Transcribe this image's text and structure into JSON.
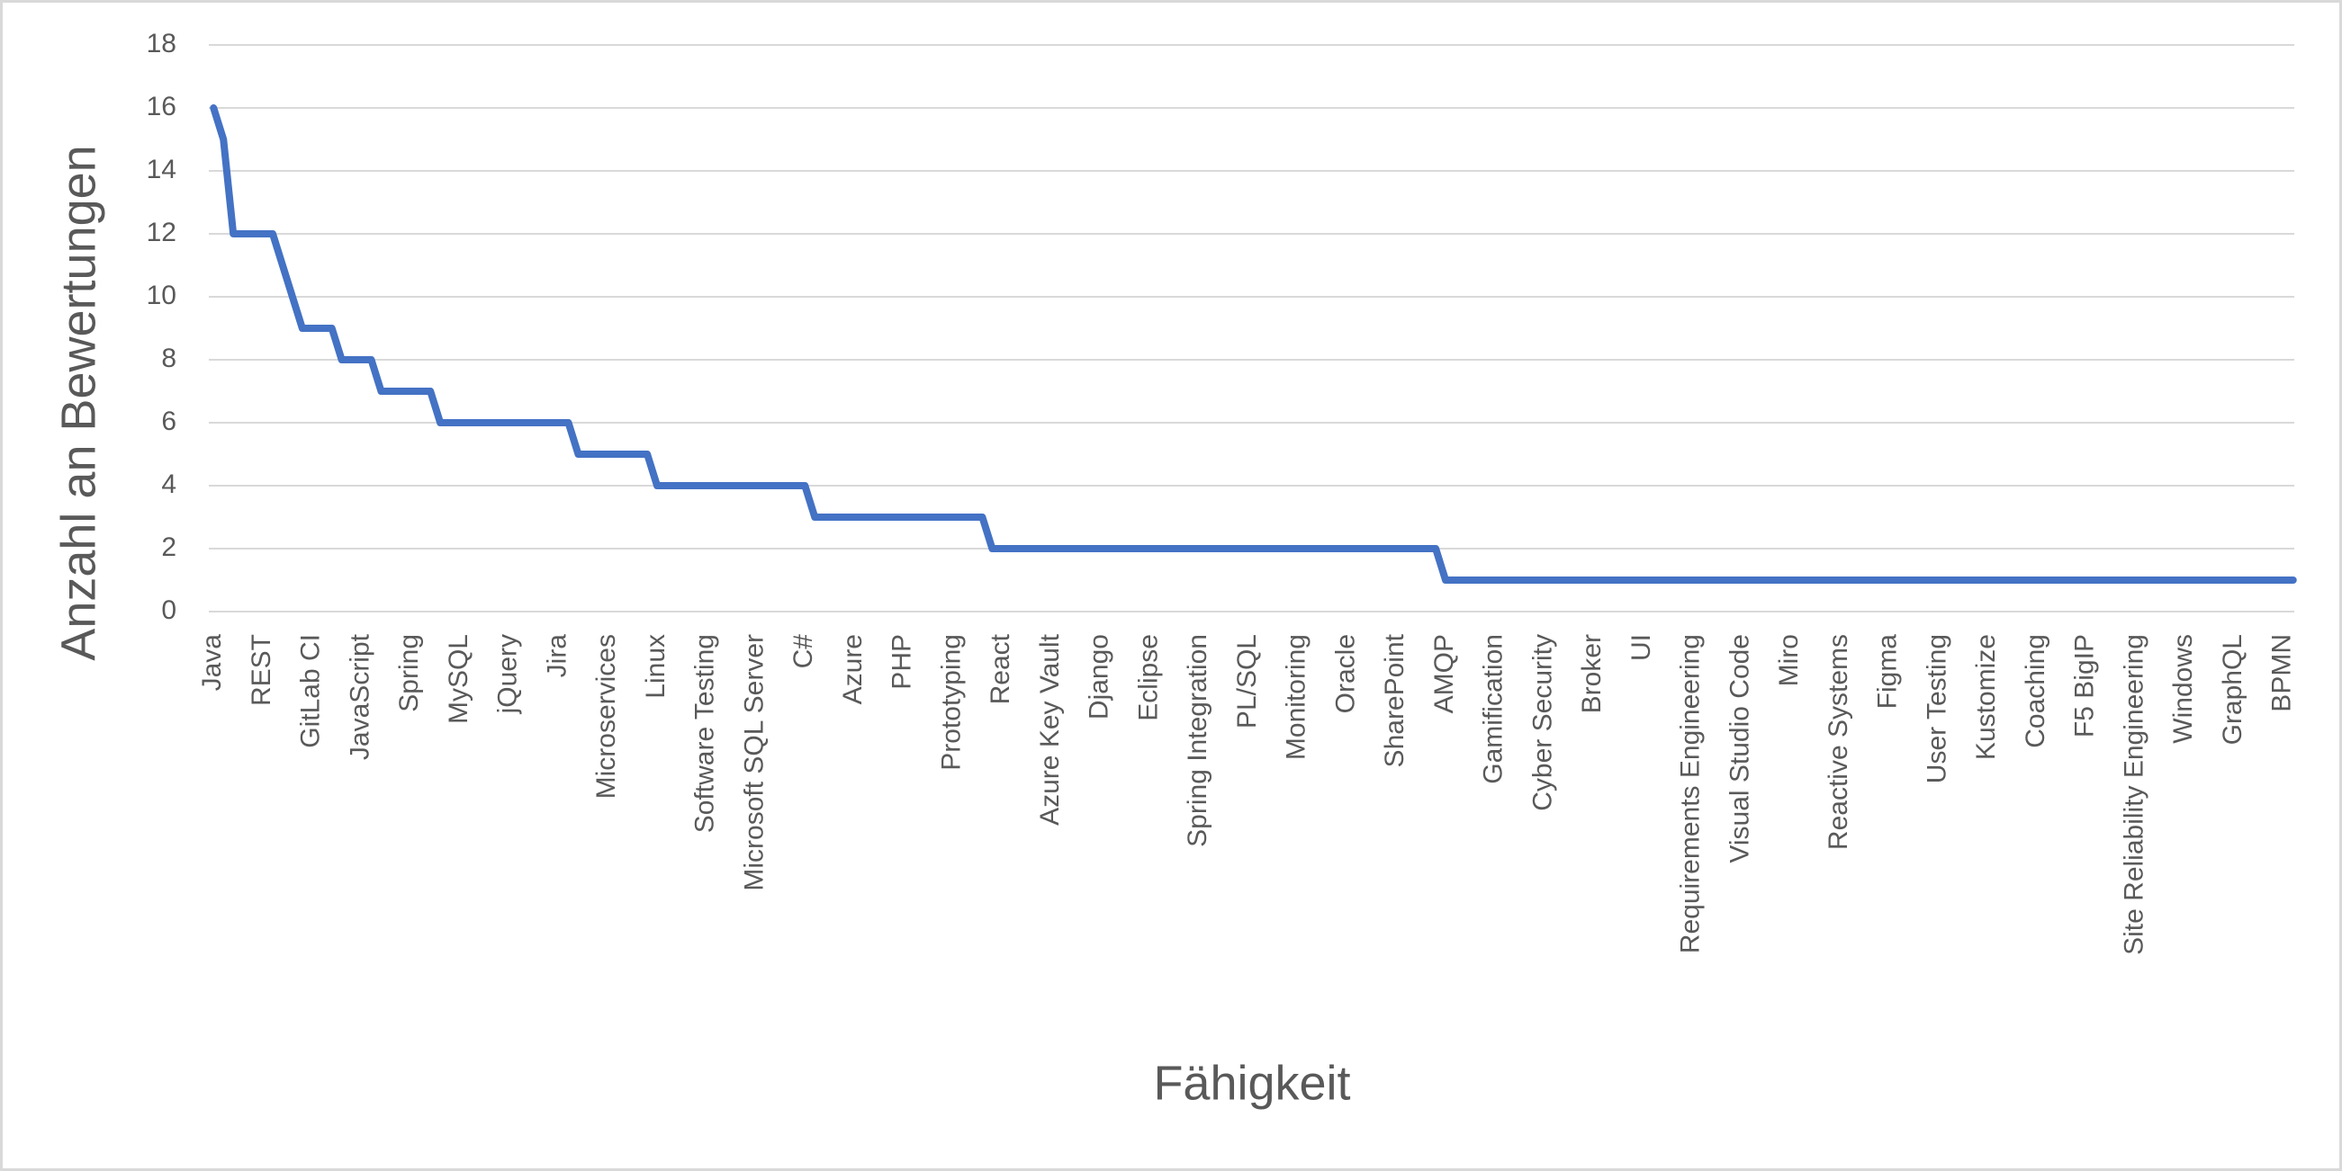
{
  "chart_data": {
    "type": "line",
    "x_label": "Fähigkeit",
    "y_label": "Anzahl an Bewertungen",
    "categories": [
      "Java",
      null,
      null,
      null,
      null,
      "REST",
      null,
      null,
      null,
      null,
      "GitLab CI",
      null,
      null,
      null,
      null,
      "JavaScript",
      null,
      null,
      null,
      null,
      "Spring",
      null,
      null,
      null,
      null,
      "MySQL",
      null,
      null,
      null,
      null,
      "jQuery",
      null,
      null,
      null,
      null,
      "Jira",
      null,
      null,
      null,
      null,
      "Microservices",
      null,
      null,
      null,
      null,
      "Linux",
      null,
      null,
      null,
      null,
      "Software Testing",
      null,
      null,
      null,
      null,
      "Microsoft SQL Server",
      null,
      null,
      null,
      null,
      "C#",
      null,
      null,
      null,
      null,
      "Azure",
      null,
      null,
      null,
      null,
      "PHP",
      null,
      null,
      null,
      null,
      "Prototyping",
      null,
      null,
      null,
      null,
      "React",
      null,
      null,
      null,
      null,
      "Azure Key Vault",
      null,
      null,
      null,
      null,
      "Django",
      null,
      null,
      null,
      null,
      "Eclipse",
      null,
      null,
      null,
      null,
      "Spring Integration",
      null,
      null,
      null,
      null,
      "PL/SQL",
      null,
      null,
      null,
      null,
      "Monitoring",
      null,
      null,
      null,
      null,
      "Oracle",
      null,
      null,
      null,
      null,
      "SharePoint",
      null,
      null,
      null,
      null,
      "AMQP",
      null,
      null,
      null,
      null,
      "Gamification",
      null,
      null,
      null,
      null,
      "Cyber Security",
      null,
      null,
      null,
      null,
      "Broker",
      null,
      null,
      null,
      null,
      "UI",
      null,
      null,
      null,
      null,
      "Requirements Engineering",
      null,
      null,
      null,
      null,
      "Visual Studio Code",
      null,
      null,
      null,
      null,
      "Miro",
      null,
      null,
      null,
      null,
      "Reactive Systems",
      null,
      null,
      null,
      null,
      "Figma",
      null,
      null,
      null,
      null,
      "User Testing",
      null,
      null,
      null,
      null,
      "Kustomize",
      null,
      null,
      null,
      null,
      "Coaching",
      null,
      null,
      null,
      null,
      "F5 BigIP",
      null,
      null,
      null,
      null,
      "Site Reliability Engineering",
      null,
      null,
      null,
      null,
      "Windows",
      null,
      null,
      null,
      null,
      "GraphQL",
      null,
      null,
      null,
      null,
      "BPMN",
      null
    ],
    "series": [
      {
        "color": "#4472c4",
        "values": [
          16,
          15,
          12,
          12,
          12,
          12,
          12,
          11,
          10,
          9,
          9,
          9,
          9,
          8,
          8,
          8,
          8,
          7,
          7,
          7,
          7,
          7,
          7,
          6,
          6,
          6,
          6,
          6,
          6,
          6,
          6,
          6,
          6,
          6,
          6,
          6,
          6,
          5,
          5,
          5,
          5,
          5,
          5,
          5,
          5,
          4,
          4,
          4,
          4,
          4,
          4,
          4,
          4,
          4,
          4,
          4,
          4,
          4,
          4,
          4,
          4,
          3,
          3,
          3,
          3,
          3,
          3,
          3,
          3,
          3,
          3,
          3,
          3,
          3,
          3,
          3,
          3,
          3,
          3,
          2,
          2,
          2,
          2,
          2,
          2,
          2,
          2,
          2,
          2,
          2,
          2,
          2,
          2,
          2,
          2,
          2,
          2,
          2,
          2,
          2,
          2,
          2,
          2,
          2,
          2,
          2,
          2,
          2,
          2,
          2,
          2,
          2,
          2,
          2,
          2,
          2,
          2,
          2,
          2,
          2,
          2,
          2,
          2,
          2,
          2,
          1,
          1,
          1,
          1,
          1,
          1,
          1,
          1,
          1,
          1,
          1,
          1,
          1,
          1,
          1,
          1,
          1,
          1,
          1,
          1,
          1,
          1,
          1,
          1,
          1,
          1,
          1,
          1,
          1,
          1,
          1,
          1,
          1,
          1,
          1,
          1,
          1,
          1,
          1,
          1,
          1,
          1,
          1,
          1,
          1,
          1,
          1,
          1,
          1,
          1,
          1,
          1,
          1,
          1,
          1,
          1,
          1,
          1,
          1,
          1,
          1,
          1,
          1,
          1,
          1,
          1,
          1,
          1,
          1,
          1,
          1,
          1,
          1,
          1,
          1,
          1,
          1,
          1,
          1,
          1,
          1,
          1,
          1,
          1,
          1,
          1,
          1
        ]
      }
    ],
    "ylim": [
      0,
      18
    ],
    "yticks": [
      0,
      2,
      4,
      6,
      8,
      10,
      12,
      14,
      16,
      18
    ],
    "grid": true
  }
}
